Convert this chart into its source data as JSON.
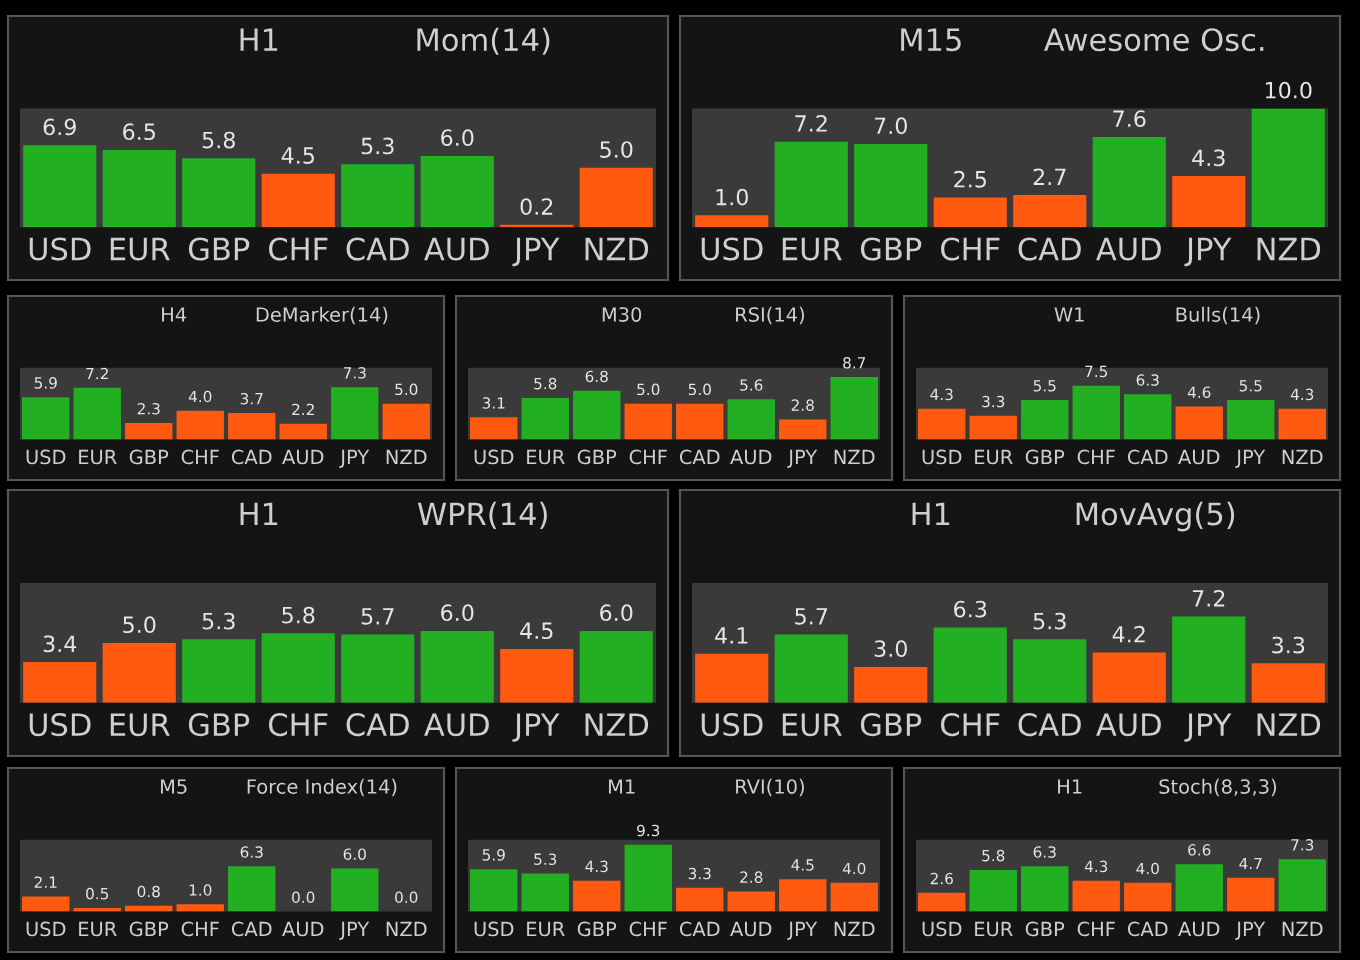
{
  "chart_data": [
    {
      "type": "bar",
      "title": "H1",
      "subtitle": "Mom(14)",
      "categories": [
        "USD",
        "EUR",
        "GBP",
        "CHF",
        "CAD",
        "AUD",
        "JPY",
        "NZD"
      ],
      "values": [
        6.9,
        6.5,
        5.8,
        4.5,
        5.3,
        6.0,
        0.2,
        5.0
      ],
      "value_labels": [
        "6.9",
        "6.5",
        "5.8",
        "4.5",
        "5.3",
        "6.0",
        "0.2",
        "5.0"
      ],
      "colors": [
        "#22b022",
        "#22b022",
        "#22b022",
        "#ff5a10",
        "#22b022",
        "#22b022",
        "#ff5a10",
        "#ff5a10"
      ],
      "ylim": [
        0,
        10
      ],
      "tick_labels": "x"
    },
    {
      "type": "bar",
      "title": "M15",
      "subtitle": "Awesome Osc.",
      "categories": [
        "USD",
        "EUR",
        "GBP",
        "CHF",
        "CAD",
        "AUD",
        "JPY",
        "NZD"
      ],
      "values": [
        1.0,
        7.2,
        7.0,
        2.5,
        2.7,
        7.6,
        4.3,
        10.0
      ],
      "value_labels": [
        "1.0",
        "7.2",
        "7.0",
        "2.5",
        "2.7",
        "7.6",
        "4.3",
        "10.0"
      ],
      "colors": [
        "#ff5a10",
        "#22b022",
        "#22b022",
        "#ff5a10",
        "#ff5a10",
        "#22b022",
        "#ff5a10",
        "#22b022"
      ],
      "ylim": [
        0,
        10
      ],
      "tick_labels": "x"
    },
    {
      "type": "bar",
      "title": "H4",
      "subtitle": "DeMarker(14)",
      "categories": [
        "USD",
        "EUR",
        "GBP",
        "CHF",
        "CAD",
        "AUD",
        "JPY",
        "NZD"
      ],
      "values": [
        5.9,
        7.2,
        2.3,
        4.0,
        3.7,
        2.2,
        7.3,
        5.0
      ],
      "value_labels": [
        "5.9",
        "7.2",
        "2.3",
        "4.0",
        "3.7",
        "2.2",
        "7.3",
        "5.0"
      ],
      "colors": [
        "#22b022",
        "#22b022",
        "#ff5a10",
        "#ff5a10",
        "#ff5a10",
        "#ff5a10",
        "#22b022",
        "#ff5a10"
      ],
      "ylim": [
        0,
        10
      ],
      "tick_labels": "x"
    },
    {
      "type": "bar",
      "title": "M30",
      "subtitle": "RSI(14)",
      "categories": [
        "USD",
        "EUR",
        "GBP",
        "CHF",
        "CAD",
        "AUD",
        "JPY",
        "NZD"
      ],
      "values": [
        3.1,
        5.8,
        6.8,
        5.0,
        5.0,
        5.6,
        2.8,
        8.7
      ],
      "value_labels": [
        "3.1",
        "5.8",
        "6.8",
        "5.0",
        "5.0",
        "5.6",
        "2.8",
        "8.7"
      ],
      "colors": [
        "#ff5a10",
        "#22b022",
        "#22b022",
        "#ff5a10",
        "#ff5a10",
        "#22b022",
        "#ff5a10",
        "#22b022"
      ],
      "ylim": [
        0,
        10
      ],
      "tick_labels": "x"
    },
    {
      "type": "bar",
      "title": "W1",
      "subtitle": "Bulls(14)",
      "categories": [
        "USD",
        "EUR",
        "GBP",
        "CHF",
        "CAD",
        "AUD",
        "JPY",
        "NZD"
      ],
      "values": [
        4.3,
        3.3,
        5.5,
        7.5,
        6.3,
        4.6,
        5.5,
        4.3
      ],
      "value_labels": [
        "4.3",
        "3.3",
        "5.5",
        "7.5",
        "6.3",
        "4.6",
        "5.5",
        "4.3"
      ],
      "colors": [
        "#ff5a10",
        "#ff5a10",
        "#22b022",
        "#22b022",
        "#22b022",
        "#ff5a10",
        "#22b022",
        "#ff5a10"
      ],
      "ylim": [
        0,
        10
      ],
      "tick_labels": "x"
    },
    {
      "type": "bar",
      "title": "H1",
      "subtitle": "WPR(14)",
      "categories": [
        "USD",
        "EUR",
        "GBP",
        "CHF",
        "CAD",
        "AUD",
        "JPY",
        "NZD"
      ],
      "values": [
        3.4,
        5.0,
        5.3,
        5.8,
        5.7,
        6.0,
        4.5,
        6.0
      ],
      "value_labels": [
        "3.4",
        "5.0",
        "5.3",
        "5.8",
        "5.7",
        "6.0",
        "4.5",
        "6.0"
      ],
      "colors": [
        "#ff5a10",
        "#ff5a10",
        "#22b022",
        "#22b022",
        "#22b022",
        "#22b022",
        "#ff5a10",
        "#22b022"
      ],
      "ylim": [
        0,
        10
      ],
      "tick_labels": "x"
    },
    {
      "type": "bar",
      "title": "H1",
      "subtitle": "MovAvg(5)",
      "categories": [
        "USD",
        "EUR",
        "GBP",
        "CHF",
        "CAD",
        "AUD",
        "JPY",
        "NZD"
      ],
      "values": [
        4.1,
        5.7,
        3.0,
        6.3,
        5.3,
        4.2,
        7.2,
        3.3
      ],
      "value_labels": [
        "4.1",
        "5.7",
        "3.0",
        "6.3",
        "5.3",
        "4.2",
        "7.2",
        "3.3"
      ],
      "colors": [
        "#ff5a10",
        "#22b022",
        "#ff5a10",
        "#22b022",
        "#22b022",
        "#ff5a10",
        "#22b022",
        "#ff5a10"
      ],
      "ylim": [
        0,
        10
      ],
      "tick_labels": "x"
    },
    {
      "type": "bar",
      "title": "M5",
      "subtitle": "Force Index(14)",
      "categories": [
        "USD",
        "EUR",
        "GBP",
        "CHF",
        "CAD",
        "AUD",
        "JPY",
        "NZD"
      ],
      "values": [
        2.1,
        0.5,
        0.8,
        1.0,
        6.3,
        0.0,
        6.0,
        0.0
      ],
      "value_labels": [
        "2.1",
        "0.5",
        "0.8",
        "1.0",
        "6.3",
        "0.0",
        "6.0",
        "0.0"
      ],
      "colors": [
        "#ff5a10",
        "#ff5a10",
        "#ff5a10",
        "#ff5a10",
        "#22b022",
        "#ff5a10",
        "#22b022",
        "#ff5a10"
      ],
      "ylim": [
        0,
        10
      ],
      "tick_labels": "x"
    },
    {
      "type": "bar",
      "title": "M1",
      "subtitle": "RVI(10)",
      "categories": [
        "USD",
        "EUR",
        "GBP",
        "CHF",
        "CAD",
        "AUD",
        "JPY",
        "NZD"
      ],
      "values": [
        5.9,
        5.3,
        4.3,
        9.3,
        3.3,
        2.8,
        4.5,
        4.0
      ],
      "value_labels": [
        "5.9",
        "5.3",
        "4.3",
        "9.3",
        "3.3",
        "2.8",
        "4.5",
        "4.0"
      ],
      "colors": [
        "#22b022",
        "#22b022",
        "#ff5a10",
        "#22b022",
        "#ff5a10",
        "#ff5a10",
        "#ff5a10",
        "#ff5a10"
      ],
      "ylim": [
        0,
        10
      ],
      "tick_labels": "x"
    },
    {
      "type": "bar",
      "title": "H1",
      "subtitle": "Stoch(8,3,3)",
      "categories": [
        "USD",
        "EUR",
        "GBP",
        "CHF",
        "CAD",
        "AUD",
        "JPY",
        "NZD"
      ],
      "values": [
        2.6,
        5.8,
        6.3,
        4.3,
        4.0,
        6.6,
        4.7,
        7.3
      ],
      "value_labels": [
        "2.6",
        "5.8",
        "6.3",
        "4.3",
        "4.0",
        "6.6",
        "4.7",
        "7.3"
      ],
      "colors": [
        "#ff5a10",
        "#22b022",
        "#22b022",
        "#ff5a10",
        "#ff5a10",
        "#22b022",
        "#ff5a10",
        "#22b022"
      ],
      "ylim": [
        0,
        10
      ],
      "tick_labels": "x"
    }
  ]
}
